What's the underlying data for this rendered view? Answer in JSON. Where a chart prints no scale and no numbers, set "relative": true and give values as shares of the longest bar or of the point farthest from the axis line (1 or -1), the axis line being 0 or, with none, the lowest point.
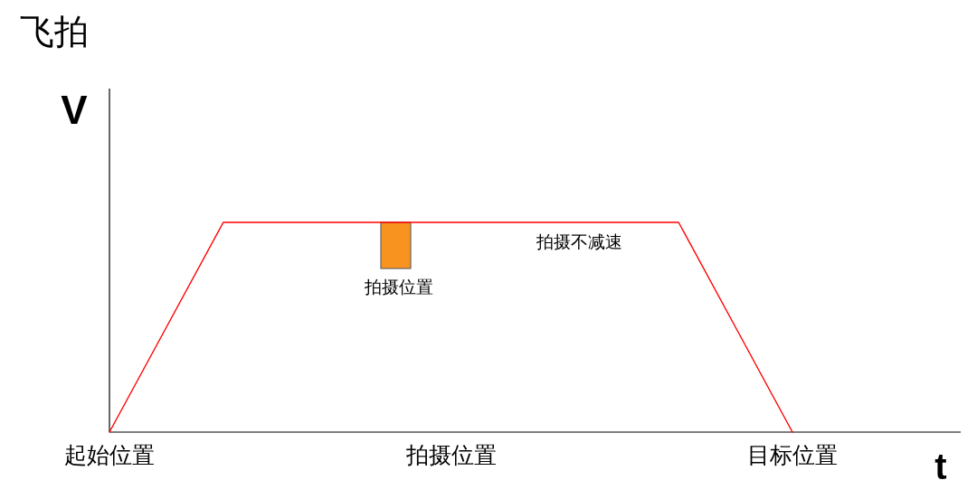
{
  "chart_data": {
    "type": "line",
    "title": "飞拍",
    "xlabel": "t",
    "ylabel": "V",
    "relative": true,
    "categories": [
      "起始位置",
      null,
      null,
      null,
      null,
      null,
      "拍摄位置",
      null,
      null,
      null,
      null,
      null,
      "目标位置"
    ],
    "series": [
      {
        "color": "#ff0000",
        "values": [
          0,
          0.5,
          1,
          1,
          1,
          1,
          1,
          1,
          1,
          1,
          1,
          0.5,
          0
        ]
      }
    ],
    "annotations": [
      "拍摄位置",
      "拍摄不减速"
    ]
  }
}
